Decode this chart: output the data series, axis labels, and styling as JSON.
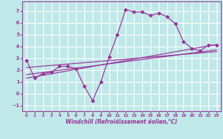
{
  "xlabel": "Windchill (Refroidissement éolien,°C)",
  "bg_color": "#c0e8e8",
  "grid_color": "#ffffff",
  "line_color": "#993399",
  "xlim": [
    -0.5,
    23.5
  ],
  "ylim": [
    -1.5,
    7.8
  ],
  "yticks": [
    -1,
    0,
    1,
    2,
    3,
    4,
    5,
    6,
    7
  ],
  "xticks": [
    0,
    1,
    2,
    3,
    4,
    5,
    6,
    7,
    8,
    9,
    10,
    11,
    12,
    13,
    14,
    15,
    16,
    17,
    18,
    19,
    20,
    21,
    22,
    23
  ],
  "series1_x": [
    0,
    1,
    2,
    3,
    4,
    5,
    6,
    7,
    8,
    9,
    10,
    11,
    12,
    13,
    14,
    15,
    16,
    17,
    18,
    19,
    20,
    21,
    22,
    23
  ],
  "series1_y": [
    2.8,
    1.3,
    1.7,
    1.8,
    2.3,
    2.3,
    2.1,
    0.6,
    -0.6,
    1.0,
    3.1,
    5.0,
    7.1,
    6.9,
    6.9,
    6.6,
    6.8,
    6.5,
    5.9,
    4.4,
    3.8,
    3.6,
    4.1,
    4.1
  ],
  "line1_x": [
    0,
    23
  ],
  "line1_y": [
    1.3,
    4.15
  ],
  "line2_x": [
    0,
    23
  ],
  "line2_y": [
    1.6,
    3.7
  ],
  "line3_x": [
    0,
    23
  ],
  "line3_y": [
    2.2,
    3.55
  ]
}
